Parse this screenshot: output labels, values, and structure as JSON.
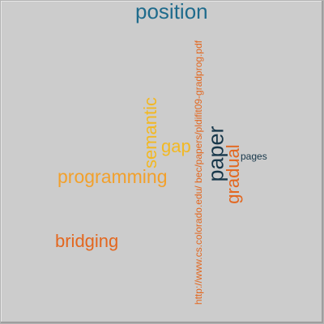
{
  "words": {
    "position": {
      "text": "position",
      "color": "#1f6b8c"
    },
    "url": {
      "text": "http://www.cs.colorado.edu/ bec/papers/pldifit09-gradprog.pdf",
      "color": "#e3671f"
    },
    "semantic": {
      "text": "semantic",
      "color": "#f2b823"
    },
    "gap": {
      "text": "gap",
      "color": "#f2b823"
    },
    "paper": {
      "text": "paper",
      "color": "#17374a"
    },
    "gradual": {
      "text": "gradual",
      "color": "#e3671f"
    },
    "pages": {
      "text": "pages",
      "color": "#17374a"
    },
    "programming": {
      "text": "programming",
      "color": "#f2a02b"
    },
    "bridging": {
      "text": "bridging",
      "color": "#e3671f"
    }
  }
}
